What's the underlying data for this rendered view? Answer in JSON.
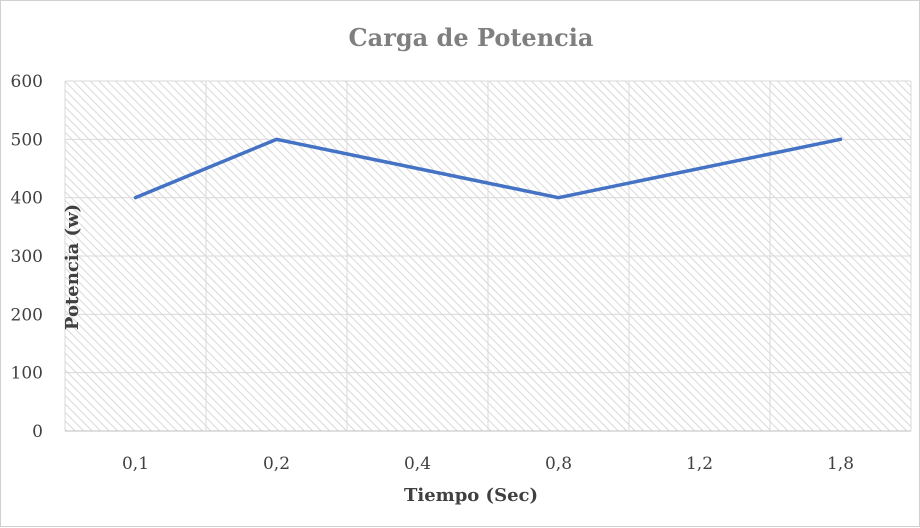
{
  "chart_data": {
    "type": "line",
    "title": "Carga de Potencia",
    "xlabel": "Tiempo (Sec)",
    "ylabel": "Potencia (w)",
    "categories": [
      "0,1",
      "0,2",
      "0,4",
      "0,8",
      "1,2",
      "1,8"
    ],
    "series": [
      {
        "values": [
          400,
          500,
          null,
          400,
          null,
          500
        ]
      }
    ],
    "ylim": [
      0,
      600
    ],
    "yticks": [
      "0",
      "100",
      "200",
      "300",
      "400",
      "500",
      "600"
    ],
    "grid": true,
    "legend": "none",
    "colors": {
      "line": "#4472c4",
      "hatch": "#cfcfcf",
      "grid": "#d9d9d9"
    }
  }
}
